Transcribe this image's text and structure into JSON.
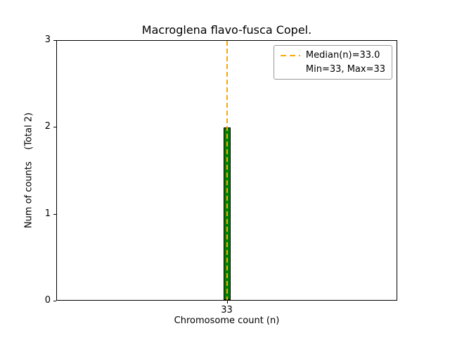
{
  "chart_data": {
    "type": "bar",
    "title": "Macroglena flavo-fusca Copel.",
    "xlabel": "Chromosome count (n)",
    "ylabel": "Num of counts    (Total 2)",
    "categories": [
      "33"
    ],
    "x": [
      33
    ],
    "values": [
      2
    ],
    "total_counts": 2,
    "median": 33.0,
    "min": 33,
    "max": 33,
    "ylim": [
      0,
      3
    ],
    "yticks": [
      0,
      1,
      2,
      3
    ],
    "xticks": [
      "33"
    ],
    "grid": false,
    "legend_position": "upper right",
    "legend": [
      "Median(n)=33.0",
      "Min=33, Max=33"
    ],
    "colors": {
      "bar_fill": "#008000",
      "bar_edge": "#000000",
      "median_line": "#FFA500",
      "axes": "#000000",
      "background": "#ffffff"
    }
  }
}
